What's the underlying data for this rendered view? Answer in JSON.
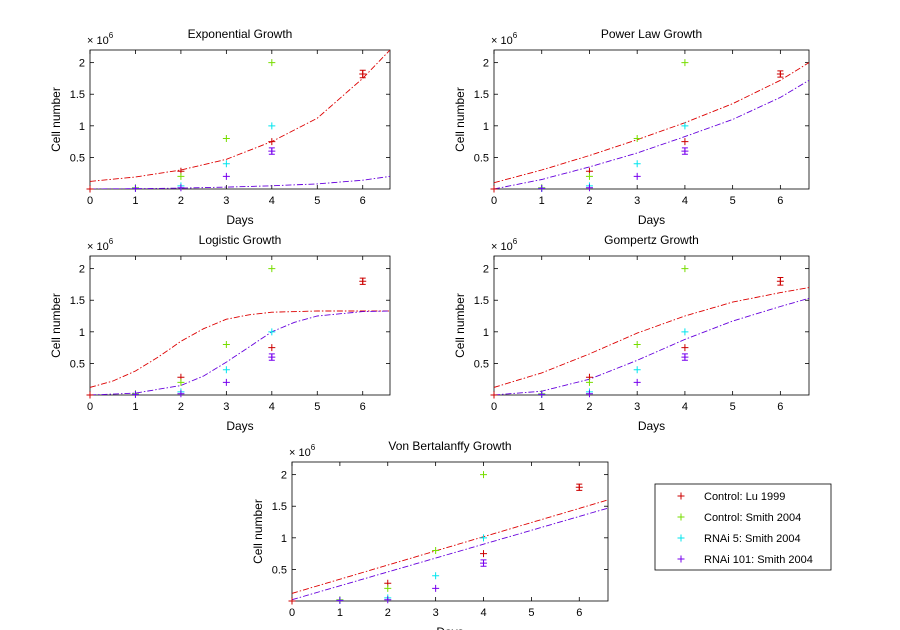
{
  "colors": {
    "control_lu": "#cc0000",
    "control_smith": "#77dd00",
    "rnai5": "#00e5ee",
    "rnai101": "#7700ee",
    "fit_red": "#dd0000",
    "fit_purple": "#6600dd"
  },
  "legend": {
    "items": [
      {
        "label": "Control: Lu 1999",
        "color": "#cc0000"
      },
      {
        "label": "Control: Smith 2004",
        "color": "#77dd00"
      },
      {
        "label": "RNAi 5: Smith 2004",
        "color": "#00e5ee"
      },
      {
        "label": "RNAi 101: Smith 2004",
        "color": "#7700ee"
      }
    ]
  },
  "chart_data": [
    {
      "type": "scatter",
      "title": "Exponential Growth",
      "xlabel": "Days",
      "ylabel": "Cell number",
      "yexponent": "× 10",
      "yexponent_power": "6",
      "xlim": [
        0,
        6.6
      ],
      "ylim": [
        0,
        2.2
      ],
      "xticks": [
        "0",
        "1",
        "2",
        "3",
        "4",
        "5",
        "6"
      ],
      "yticks": [
        "0.5",
        "1",
        "1.5",
        "2"
      ],
      "series": [
        {
          "name": "Control: Lu 1999",
          "x": [
            0,
            2,
            4,
            6
          ],
          "y": [
            0,
            0.28,
            0.75,
            1.82
          ],
          "err": [
            0,
            0,
            0,
            0.06
          ]
        },
        {
          "name": "Control: Smith 2004",
          "x": [
            1,
            2,
            3,
            4
          ],
          "y": [
            0.02,
            0.2,
            0.8,
            2.0
          ]
        },
        {
          "name": "RNAi 5: Smith 2004",
          "x": [
            1,
            2,
            3,
            4
          ],
          "y": [
            0.01,
            0.05,
            0.4,
            1.0
          ]
        },
        {
          "name": "RNAi 101: Smith 2004",
          "x": [
            1,
            2,
            3,
            4
          ],
          "y": [
            0.01,
            0.02,
            0.2,
            0.6
          ],
          "err": [
            0,
            0,
            0,
            0.05
          ]
        }
      ],
      "fits": [
        {
          "name": "fit red",
          "x": [
            0,
            1,
            2,
            3,
            4,
            5,
            6,
            6.6
          ],
          "y": [
            0.12,
            0.19,
            0.3,
            0.47,
            0.75,
            1.12,
            1.75,
            2.2
          ]
        },
        {
          "name": "fit purple",
          "x": [
            0,
            1,
            2,
            3,
            4,
            5,
            6,
            6.6
          ],
          "y": [
            0.0,
            0.005,
            0.015,
            0.03,
            0.05,
            0.08,
            0.14,
            0.2
          ]
        }
      ]
    },
    {
      "type": "scatter",
      "title": "Power Law Growth",
      "xlabel": "Days",
      "ylabel": "Cell number",
      "yexponent": "× 10",
      "yexponent_power": "6",
      "xlim": [
        0,
        6.6
      ],
      "ylim": [
        0,
        2.2
      ],
      "xticks": [
        "0",
        "1",
        "2",
        "3",
        "4",
        "5",
        "6"
      ],
      "yticks": [
        "0.5",
        "1",
        "1.5",
        "2"
      ],
      "series": [
        {
          "name": "Control: Lu 1999",
          "x": [
            0,
            2,
            4,
            6
          ],
          "y": [
            0,
            0.28,
            0.75,
            1.82
          ],
          "err": [
            0,
            0,
            0,
            0.05
          ]
        },
        {
          "name": "Control: Smith 2004",
          "x": [
            1,
            2,
            3,
            4
          ],
          "y": [
            0.02,
            0.2,
            0.8,
            2.0
          ]
        },
        {
          "name": "RNAi 5: Smith 2004",
          "x": [
            1,
            2,
            3,
            4
          ],
          "y": [
            0.01,
            0.05,
            0.4,
            1.0
          ]
        },
        {
          "name": "RNAi 101: Smith 2004",
          "x": [
            1,
            2,
            3,
            4
          ],
          "y": [
            0.01,
            0.02,
            0.2,
            0.6
          ],
          "err": [
            0,
            0,
            0,
            0.05
          ]
        }
      ],
      "fits": [
        {
          "name": "fit red",
          "x": [
            0,
            1,
            2,
            3,
            4,
            5,
            6,
            6.6
          ],
          "y": [
            0.1,
            0.3,
            0.53,
            0.78,
            1.05,
            1.35,
            1.72,
            2.0
          ]
        },
        {
          "name": "fit purple",
          "x": [
            0,
            1,
            2,
            3,
            4,
            5,
            6,
            6.6
          ],
          "y": [
            0.0,
            0.15,
            0.35,
            0.57,
            0.83,
            1.1,
            1.45,
            1.72
          ]
        }
      ]
    },
    {
      "type": "scatter",
      "title": "Logistic Growth",
      "xlabel": "Days",
      "ylabel": "Cell number",
      "yexponent": "× 10",
      "yexponent_power": "6",
      "xlim": [
        0,
        6.6
      ],
      "ylim": [
        0,
        2.2
      ],
      "xticks": [
        "0",
        "1",
        "2",
        "3",
        "4",
        "5",
        "6"
      ],
      "yticks": [
        "0.5",
        "1",
        "1.5",
        "2"
      ],
      "series": [
        {
          "name": "Control: Lu 1999",
          "x": [
            0,
            2,
            4,
            6
          ],
          "y": [
            0,
            0.28,
            0.75,
            1.8
          ],
          "err": [
            0,
            0,
            0,
            0.05
          ]
        },
        {
          "name": "Control: Smith 2004",
          "x": [
            1,
            2,
            3,
            4
          ],
          "y": [
            0.02,
            0.2,
            0.8,
            2.0
          ]
        },
        {
          "name": "RNAi 5: Smith 2004",
          "x": [
            1,
            2,
            3,
            4
          ],
          "y": [
            0.01,
            0.05,
            0.4,
            1.0
          ]
        },
        {
          "name": "RNAi 101: Smith 2004",
          "x": [
            1,
            2,
            3,
            4
          ],
          "y": [
            0.01,
            0.02,
            0.2,
            0.6
          ],
          "err": [
            0,
            0,
            0,
            0.05
          ]
        }
      ],
      "fits": [
        {
          "name": "fit red",
          "x": [
            0,
            0.5,
            1,
            1.5,
            2,
            2.5,
            3,
            3.5,
            4,
            5,
            6,
            6.6
          ],
          "y": [
            0.12,
            0.22,
            0.38,
            0.6,
            0.85,
            1.05,
            1.2,
            1.27,
            1.31,
            1.33,
            1.33,
            1.33
          ]
        },
        {
          "name": "fit purple",
          "x": [
            0,
            1,
            2,
            2.5,
            3,
            3.5,
            4,
            4.5,
            5,
            6,
            6.6
          ],
          "y": [
            0.0,
            0.03,
            0.15,
            0.3,
            0.52,
            0.76,
            1.0,
            1.15,
            1.25,
            1.32,
            1.33
          ]
        }
      ]
    },
    {
      "type": "scatter",
      "title": "Gompertz Growth",
      "xlabel": "Days",
      "ylabel": "Cell number",
      "yexponent": "× 10",
      "yexponent_power": "6",
      "xlim": [
        0,
        6.6
      ],
      "ylim": [
        0,
        2.2
      ],
      "xticks": [
        "0",
        "1",
        "2",
        "3",
        "4",
        "5",
        "6"
      ],
      "yticks": [
        "0.5",
        "1",
        "1.5",
        "2"
      ],
      "series": [
        {
          "name": "Control: Lu 1999",
          "x": [
            0,
            2,
            4,
            6
          ],
          "y": [
            0,
            0.28,
            0.75,
            1.8
          ],
          "err": [
            0,
            0,
            0,
            0.06
          ]
        },
        {
          "name": "Control: Smith 2004",
          "x": [
            1,
            2,
            3,
            4
          ],
          "y": [
            0.02,
            0.2,
            0.8,
            2.0
          ]
        },
        {
          "name": "RNAi 5: Smith 2004",
          "x": [
            1,
            2,
            3,
            4
          ],
          "y": [
            0.01,
            0.05,
            0.4,
            1.0
          ]
        },
        {
          "name": "RNAi 101: Smith 2004",
          "x": [
            1,
            2,
            3,
            4
          ],
          "y": [
            0.01,
            0.02,
            0.2,
            0.6
          ],
          "err": [
            0,
            0,
            0,
            0.05
          ]
        }
      ],
      "fits": [
        {
          "name": "fit red",
          "x": [
            0,
            1,
            2,
            3,
            4,
            5,
            6,
            6.6
          ],
          "y": [
            0.12,
            0.35,
            0.65,
            0.98,
            1.25,
            1.47,
            1.62,
            1.7
          ]
        },
        {
          "name": "fit purple",
          "x": [
            0,
            1,
            2,
            3,
            4,
            5,
            6,
            6.6
          ],
          "y": [
            0.0,
            0.06,
            0.25,
            0.55,
            0.88,
            1.17,
            1.4,
            1.53
          ]
        }
      ]
    },
    {
      "type": "scatter",
      "title": "Von Bertalanffy Growth",
      "xlabel": "Days",
      "ylabel": "Cell number",
      "yexponent": "× 10",
      "yexponent_power": "6",
      "xlim": [
        0,
        6.6
      ],
      "ylim": [
        0,
        2.2
      ],
      "xticks": [
        "0",
        "1",
        "2",
        "3",
        "4",
        "5",
        "6"
      ],
      "yticks": [
        "0.5",
        "1",
        "1.5",
        "2"
      ],
      "series": [
        {
          "name": "Control: Lu 1999",
          "x": [
            0,
            2,
            4,
            6
          ],
          "y": [
            0,
            0.28,
            0.75,
            1.8
          ],
          "err": [
            0,
            0,
            0,
            0.05
          ]
        },
        {
          "name": "Control: Smith 2004",
          "x": [
            1,
            2,
            3,
            4
          ],
          "y": [
            0.02,
            0.2,
            0.8,
            2.0
          ]
        },
        {
          "name": "RNAi 5: Smith 2004",
          "x": [
            1,
            2,
            3,
            4
          ],
          "y": [
            0.01,
            0.05,
            0.4,
            1.0
          ]
        },
        {
          "name": "RNAi 101: Smith 2004",
          "x": [
            1,
            2,
            3,
            4
          ],
          "y": [
            0.01,
            0.02,
            0.2,
            0.6
          ],
          "err": [
            0,
            0,
            0,
            0.05
          ]
        }
      ],
      "fits": [
        {
          "name": "fit red",
          "x": [
            0,
            6.6
          ],
          "y": [
            0.12,
            1.6
          ]
        },
        {
          "name": "fit purple",
          "x": [
            0,
            6.6
          ],
          "y": [
            0.02,
            1.47
          ]
        }
      ]
    }
  ]
}
